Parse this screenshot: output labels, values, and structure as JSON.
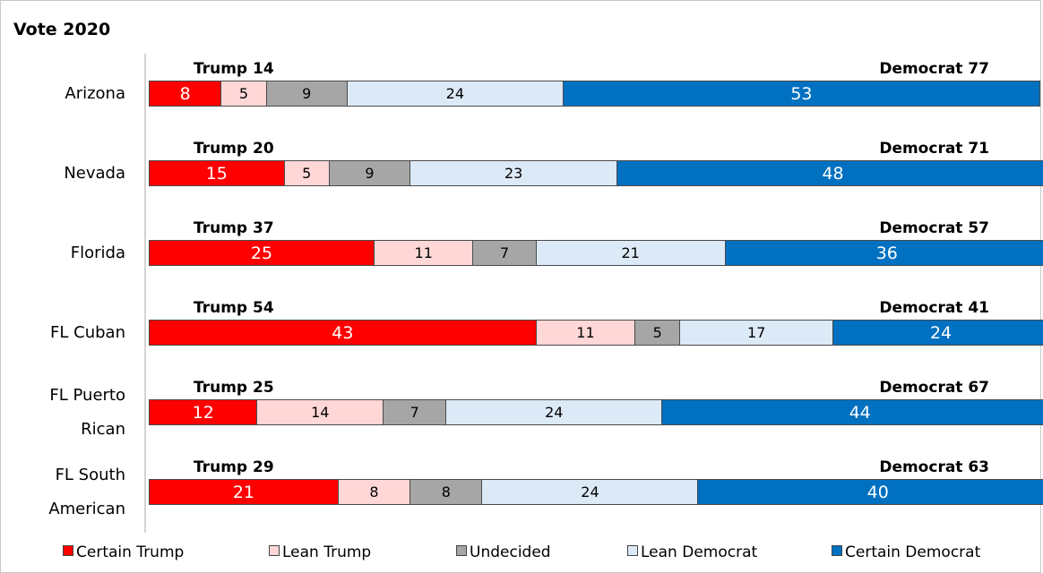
{
  "chart_data": {
    "type": "bar",
    "orientation": "horizontal",
    "stacked": true,
    "title": "Vote 2020",
    "categories": [
      [
        "Arizona"
      ],
      [
        "Nevada"
      ],
      [
        "Florida"
      ],
      [
        "FL Cuban"
      ],
      [
        "FL Puerto",
        "Rican"
      ],
      [
        "FL South",
        "American"
      ]
    ],
    "series": [
      {
        "name": "Certain Trump",
        "color": "#ff0000",
        "text_color": "#ffffff",
        "values": [
          8,
          15,
          25,
          43,
          12,
          21
        ]
      },
      {
        "name": "Lean Trump",
        "color": "#ffd7d7",
        "text_color": "#000000",
        "values": [
          5,
          5,
          11,
          11,
          14,
          8
        ]
      },
      {
        "name": "Undecided",
        "color": "#a6a6a6",
        "text_color": "#000000",
        "values": [
          9,
          9,
          7,
          5,
          7,
          8
        ]
      },
      {
        "name": "Lean Democrat",
        "color": "#dce9f7",
        "text_color": "#000000",
        "values": [
          24,
          23,
          21,
          17,
          24,
          24
        ]
      },
      {
        "name": "Certain Democrat",
        "color": "#0070c0",
        "text_color": "#ffffff",
        "values": [
          53,
          48,
          36,
          24,
          44,
          40
        ]
      }
    ],
    "totals": {
      "trump": [
        "Trump 14",
        "Trump 20",
        "Trump 37",
        "Trump 54",
        "Trump 25",
        "Trump 29"
      ],
      "democrat": [
        "Democrat 77",
        "Democrat 71",
        "Democrat 57",
        "Democrat 41",
        "Democrat 67",
        "Democrat 63"
      ]
    },
    "xlim": [
      0,
      99
    ],
    "legend_position": "bottom",
    "grid": false
  }
}
